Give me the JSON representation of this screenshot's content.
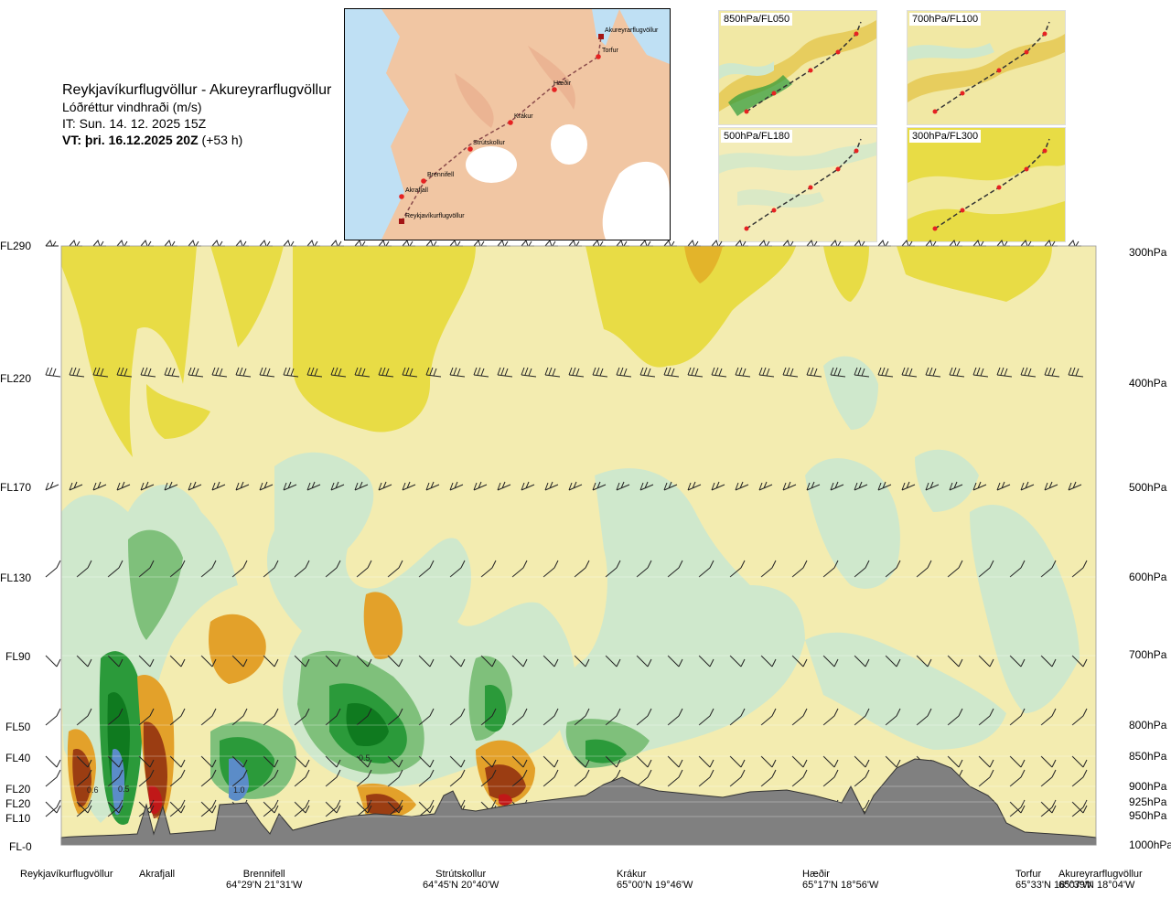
{
  "header": {
    "title": "Reykjavíkurflugvöllur - Akureyrarflugvöllur",
    "subtitle": "Lóðréttur vindhraði (m/s)",
    "issue_time": "IT: Sun. 14. 12. 2025 15Z",
    "valid_time_bold": "VT: þri. 16.12.2025 20Z",
    "valid_time_offset": " (+53 h)"
  },
  "inset_map": {
    "labels": [
      "Akureyrarflugvöllur",
      "Torfur",
      "Hæðir",
      "Krákur",
      "Strútskollur",
      "Brennifell",
      "Akrafjall",
      "Reykjavíkurflugvöllur"
    ]
  },
  "level_panels": [
    {
      "label": "850hPa/FL050"
    },
    {
      "label": "700hPa/FL100"
    },
    {
      "label": "500hPa/FL180"
    },
    {
      "label": "300hPa/FL300"
    }
  ],
  "chart_data": {
    "type": "heatmap",
    "variable": "Lóðréttur vindhraði (m/s)",
    "left_axis_labels": [
      "FL290",
      "FL220",
      "FL170",
      "FL130",
      "FL90",
      "FL50",
      "FL40",
      "FL20",
      "FL20",
      "FL10",
      "FL-0"
    ],
    "right_axis_labels": [
      "300hPa",
      "400hPa",
      "500hPa",
      "600hPa",
      "700hPa",
      "800hPa",
      "850hPa",
      "900hPa",
      "925hPa",
      "950hPa",
      "1000hPa"
    ],
    "pressure_levels_hpa": [
      300,
      400,
      500,
      600,
      700,
      800,
      850,
      900,
      925,
      950,
      1000
    ],
    "contour_labels": [
      "0.6",
      "0.5",
      "1.0",
      "0.5"
    ],
    "locations": [
      {
        "name": "Reykjavíkurflugvöllur",
        "coord": ""
      },
      {
        "name": "Akrafjall",
        "coord": ""
      },
      {
        "name": "Brennifell",
        "coord": "64°29'N 21°31'W"
      },
      {
        "name": "Strútskollur",
        "coord": "64°45'N 20°40'W"
      },
      {
        "name": "Krákur",
        "coord": "65°00'N 19°46'W"
      },
      {
        "name": "Hæðir",
        "coord": "65°17'N 18°56'W"
      },
      {
        "name": "Torfur",
        "coord": "65°33'N 18°07'W"
      },
      {
        "name": "Akureyrarflugvöllur",
        "coord": "65°39'N 18°04'W"
      }
    ],
    "colors": {
      "background": "#f3ecb0",
      "yellow": "#e8dc45",
      "orange": "#e3a12a",
      "brown": "#9b3d12",
      "red": "#c01818",
      "light_green": "#cfe8cc",
      "mid_green": "#7fc07b",
      "green": "#2b9a3a",
      "dark_green": "#0f7a1f",
      "blue": "#5b8cc8",
      "terrain": "#7f7f7f"
    }
  }
}
